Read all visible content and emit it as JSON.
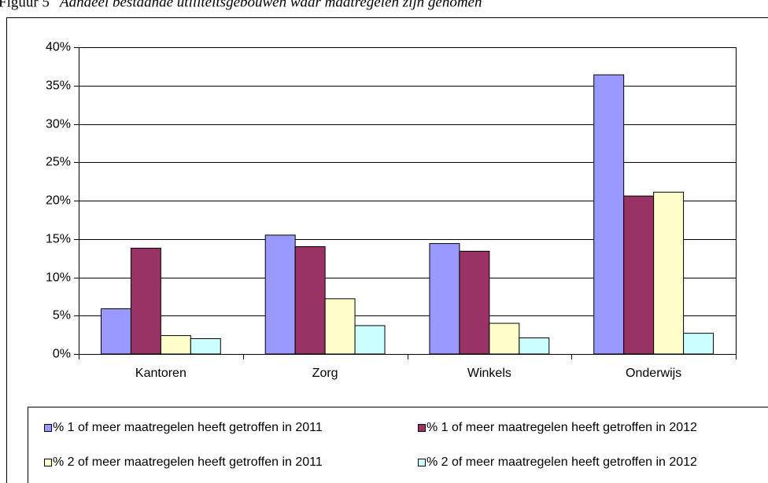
{
  "chart_data": {
    "type": "bar",
    "title_label": "Figuur 5",
    "title": "Aandeel bestaande utiliteitsgebouwen waar maatregelen zijn genomen",
    "categories": [
      "Kantoren",
      "Zorg",
      "Winkels",
      "Onderwijs"
    ],
    "series": [
      {
        "name": "% 1 of meer maatregelen heeft getroffen in 2011",
        "color": "#9999ff",
        "values": [
          5.9,
          15.5,
          14.4,
          36.4
        ]
      },
      {
        "name": "% 1 of meer maatregelen heeft getroffen in 2012",
        "color": "#993366",
        "values": [
          13.8,
          14.0,
          13.4,
          20.6
        ]
      },
      {
        "name": "% 2 of meer maatregelen heeft getroffen in 2011",
        "color": "#ffffcc",
        "values": [
          2.4,
          7.2,
          4.0,
          21.1
        ]
      },
      {
        "name": "% 2 of meer maatregelen heeft getroffen in 2012",
        "color": "#ccffff",
        "values": [
          2.0,
          3.7,
          2.1,
          2.7
        ]
      }
    ],
    "ylim": [
      0,
      40
    ],
    "yticks": [
      {
        "value": 0,
        "label": "0%"
      },
      {
        "value": 5,
        "label": "5%"
      },
      {
        "value": 10,
        "label": "10%"
      },
      {
        "value": 15,
        "label": "15%"
      },
      {
        "value": 20,
        "label": "20%"
      },
      {
        "value": 25,
        "label": "25%"
      },
      {
        "value": 30,
        "label": "30%"
      },
      {
        "value": 35,
        "label": "35%"
      },
      {
        "value": 40,
        "label": "40%"
      }
    ],
    "grid": true,
    "legend": "bottom"
  }
}
